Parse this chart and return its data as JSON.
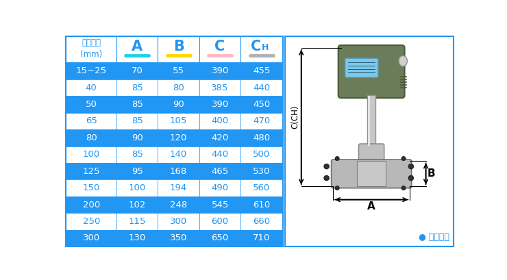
{
  "header_col0": "仪表口径\n(mm)",
  "header_cols": [
    "A",
    "B",
    "C",
    "CH"
  ],
  "col_underline_colors": [
    "#1ECFEF",
    "#FFD700",
    "#FFB6C1",
    "#B0B0B0"
  ],
  "rows": [
    [
      "15~25",
      "70",
      "55",
      "390",
      "455"
    ],
    [
      "40",
      "85",
      "80",
      "385",
      "440"
    ],
    [
      "50",
      "85",
      "90",
      "390",
      "450"
    ],
    [
      "65",
      "85",
      "105",
      "400",
      "470"
    ],
    [
      "80",
      "90",
      "120",
      "420",
      "480"
    ],
    [
      "100",
      "85",
      "140",
      "440",
      "500"
    ],
    [
      "125",
      "95",
      "168",
      "465",
      "530"
    ],
    [
      "150",
      "100",
      "194",
      "490",
      "560"
    ],
    [
      "200",
      "102",
      "248",
      "545",
      "610"
    ],
    [
      "250",
      "115",
      "300",
      "600",
      "660"
    ],
    [
      "300",
      "130",
      "350",
      "650",
      "710"
    ]
  ],
  "blue_row_indices": [
    0,
    2,
    4,
    6,
    8,
    10
  ],
  "blue_bg": "#2196F3",
  "white_bg": "#FFFFFF",
  "blue_text": "#2196F3",
  "white_text": "#FFFFFF",
  "border_color": "#2196F3",
  "caption": "● 常规仪表",
  "caption_color": "#2196F3",
  "diagram_bg": "#FFFFFF",
  "diagram_border": "#2196F3"
}
